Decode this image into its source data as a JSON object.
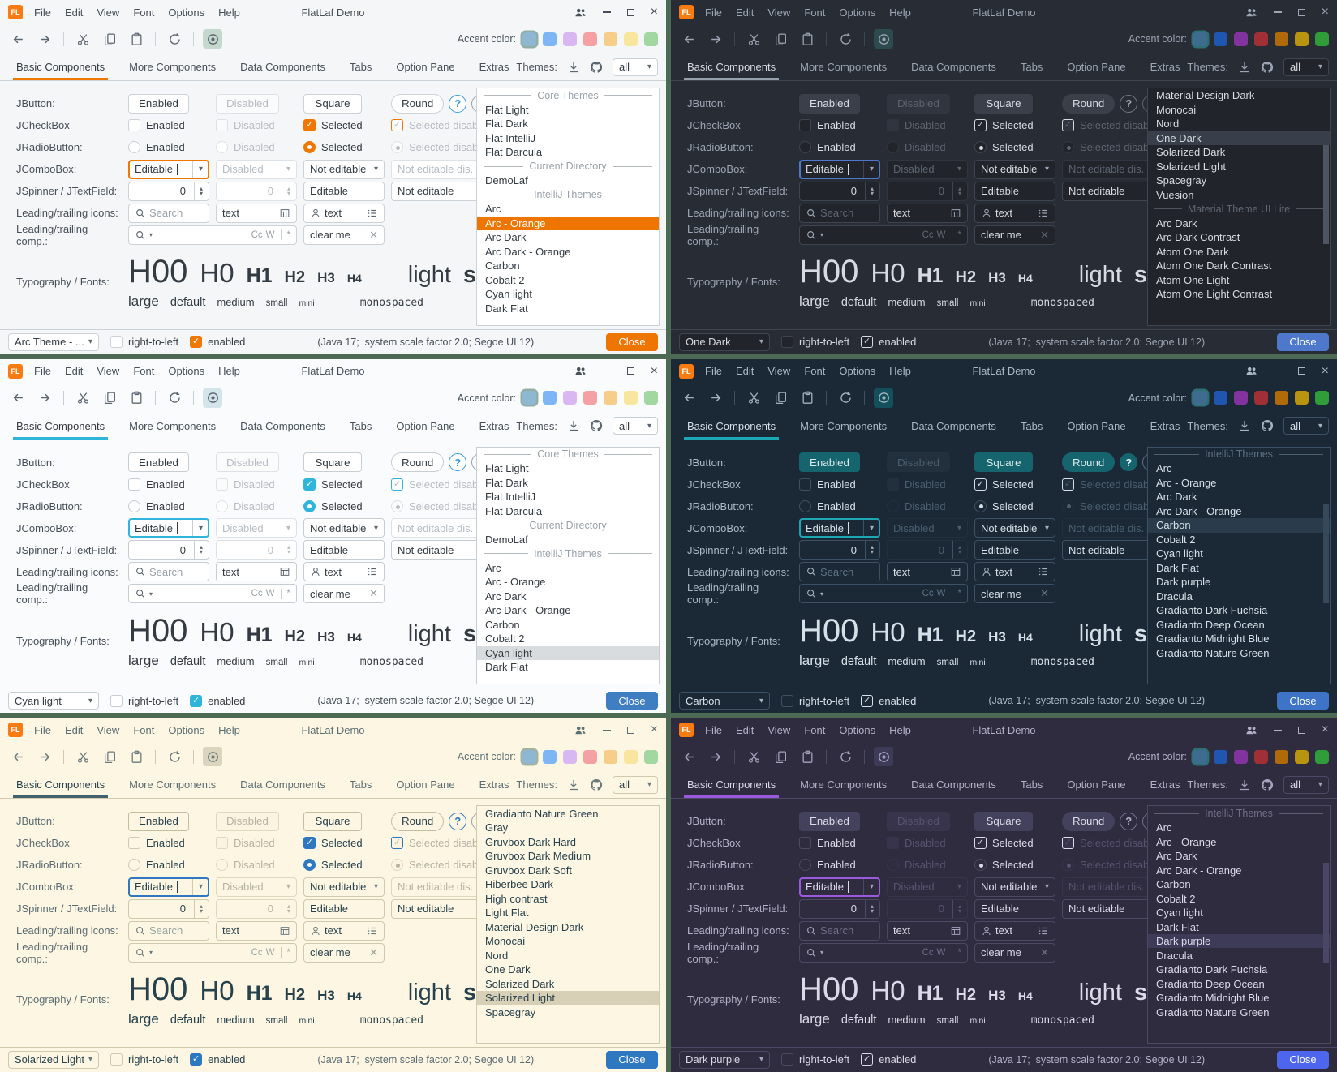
{
  "shared": {
    "titlebar": {
      "title": "FlatLaf Demo",
      "menu": [
        "File",
        "Edit",
        "View",
        "Font",
        "Options",
        "Help"
      ]
    },
    "toolbar": {
      "accent_label": "Accent color:"
    },
    "tabs": [
      "Basic Components",
      "More Components",
      "Data Components",
      "Tabs",
      "Option Pane",
      "Extras"
    ],
    "themes_panel": {
      "label": "Themes:",
      "filter_value": "all"
    },
    "accent_light": [
      "#8FB7D2",
      "#7EB6F5",
      "#D9B7F3",
      "#F5A0A2",
      "#F6CE8A",
      "#F8E59E",
      "#A3D7A1"
    ],
    "accent_dark": [
      "#3E6C8E",
      "#1E56B0",
      "#8233A0",
      "#A03036",
      "#B06A08",
      "#B89410",
      "#2F9E38"
    ],
    "icons": {
      "dropdown_arrow": "▾",
      "spinner_up": "▴",
      "spinner_down": "▾",
      "check": "✓",
      "close_x": "×",
      "clear_x": "✕",
      "caret": "|"
    },
    "rows": {
      "jbutton": {
        "label": "JButton:",
        "enabled": "Enabled",
        "disabled": "Disabled",
        "square": "Square",
        "round": "Round",
        "help": "?"
      },
      "jcheckbox": {
        "label": "JCheckBox",
        "enabled": "Enabled",
        "disabled": "Disabled",
        "selected": "Selected",
        "selected_disabled": "Selected disabled"
      },
      "jradio": {
        "label": "JRadioButton:",
        "enabled": "Enabled",
        "disabled": "Disabled",
        "selected": "Selected",
        "selected_disabled": "Selected disabled"
      },
      "jcombobox": {
        "label": "JComboBox:",
        "editable": "Editable",
        "disabled": "Disabled",
        "not_editable": "Not editable",
        "not_editable_disabled": "Not editable dis..."
      },
      "jspinner": {
        "label": "JSpinner / JTextField:",
        "value": "0",
        "editable": "Editable",
        "not_editable": "Not editable"
      },
      "icons_row": {
        "label": "Leading/trailing icons:",
        "search_placeholder": "Search",
        "text1": "text",
        "text2": "text"
      },
      "comp_row": {
        "label": "Leading/trailing comp.:",
        "match_case": "Cc",
        "words": "W",
        "regex": "*",
        "clear": "clear me"
      },
      "typography": {
        "label": "Typography / Fonts:",
        "samples": [
          "H00",
          "H0",
          "H1",
          "H2",
          "H3",
          "H4"
        ],
        "light": "light",
        "semibold": "semibold",
        "sizes": [
          "large",
          "default",
          "medium",
          "small",
          "mini"
        ],
        "monospaced": "monospaced"
      }
    },
    "status": {
      "rtl": "right-to-left",
      "enabled": "enabled",
      "info": "(Java 17;  system scale factor 2.0; Segoe UI 12)",
      "close": "Close"
    }
  },
  "panels": [
    {
      "theme": "Arc - Orange",
      "kind": "light",
      "accent_set": "accent_light",
      "scrollbar": false,
      "status_theme": "Arc Theme - ...",
      "colors": {
        "bg": "#F5F6F7",
        "field": "#FFFFFF",
        "fg": "#47505A",
        "strong": "#333B43",
        "muted": "#99A1A9",
        "border": "#CBD2D8",
        "btn": "#FFFFFF",
        "btnbd": "#CBD2D8",
        "btnfg": "#333B43",
        "btndis": "#FAFBFB",
        "disbd": "#DDE2E6",
        "disabled": "#B6BCC3",
        "accent": "#F07800",
        "tabline": "#F07800",
        "selbg": "#EE7500",
        "selfg": "#FFFFFF",
        "close": "#EE7500",
        "closefg": "#FFFFFF",
        "toggle": "#C5D8CE",
        "icon": "#5C6670",
        "checkbg": "#F07800",
        "checkfg": "#FFFFFF",
        "help1bg": "#FFFFFF",
        "help1fg": "#3B99E0",
        "help1bd": "#3B99E0",
        "thumb": "transparent",
        "ring": "#8FAFA3"
      },
      "themes_list": [
        {
          "label": "Core Themes",
          "header": true
        },
        {
          "label": "Flat Light"
        },
        {
          "label": "Flat Dark"
        },
        {
          "label": "Flat IntelliJ"
        },
        {
          "label": "Flat Darcula"
        },
        {
          "label": "Current Directory",
          "header": true
        },
        {
          "label": "DemoLaf"
        },
        {
          "label": "IntelliJ Themes",
          "header": true
        },
        {
          "label": "Arc"
        },
        {
          "label": "Arc - Orange",
          "selected": true
        },
        {
          "label": "Arc Dark"
        },
        {
          "label": "Arc Dark - Orange"
        },
        {
          "label": "Carbon"
        },
        {
          "label": "Cobalt 2"
        },
        {
          "label": "Cyan light"
        },
        {
          "label": "Dark Flat"
        }
      ]
    },
    {
      "theme": "One Dark",
      "kind": "dark",
      "accent_set": "accent_dark",
      "scrollbar": true,
      "status_theme": "One Dark",
      "colors": {
        "bg": "#282C34",
        "field": "#21252B",
        "fg": "#9DA5B4",
        "strong": "#D7DAE0",
        "muted": "#5F6672",
        "border": "#3E4450",
        "btn": "#3A3F4A",
        "btnbd": "#3A3F4A",
        "btnfg": "#D7DAE0",
        "btndis": "#31353F",
        "disbd": "#31353F",
        "disabled": "#5C636F",
        "accent": "#4D78CC",
        "tabline": "#97A0AE",
        "selbg": "#383E4A",
        "selfg": "#D7DAE0",
        "close": "#4D78CC",
        "closefg": "#FFFFFF",
        "toggle": "#2D4A4F",
        "icon": "#9DA5B4",
        "checkbg": "#21252B",
        "checkfg": "#C8CED8",
        "help1bg": "transparent",
        "help1fg": "#9DA5B4",
        "help1bd": "#6F7784",
        "thumb": "#4D5562",
        "ring": "#2E6E75"
      },
      "themes_list": [
        {
          "label": "Material Design Dark"
        },
        {
          "label": "Monocai"
        },
        {
          "label": "Nord"
        },
        {
          "label": "One Dark",
          "selected": true
        },
        {
          "label": "Solarized Dark"
        },
        {
          "label": "Solarized Light"
        },
        {
          "label": "Spacegray"
        },
        {
          "label": "Vuesion"
        },
        {
          "label": "Material Theme UI Lite",
          "header": true
        },
        {
          "label": "Arc Dark"
        },
        {
          "label": "Arc Dark Contrast"
        },
        {
          "label": "Atom One Dark"
        },
        {
          "label": "Atom One Dark Contrast"
        },
        {
          "label": "Atom One Light"
        },
        {
          "label": "Atom One Light Contrast"
        }
      ]
    },
    {
      "theme": "Cyan light",
      "kind": "light",
      "accent_set": "accent_light",
      "scrollbar": false,
      "status_theme": "Cyan light",
      "colors": {
        "bg": "#FAFBFC",
        "field": "#FFFFFF",
        "fg": "#46505A",
        "strong": "#333A41",
        "muted": "#9AA2AA",
        "border": "#C6CDD3",
        "btn": "#FFFFFF",
        "btnbd": "#C6CDD3",
        "btnfg": "#333A41",
        "btndis": "#FAFBFB",
        "disbd": "#DDE2E6",
        "disabled": "#B7BDC4",
        "accent": "#2FB4DA",
        "tabline": "#2FB4DA",
        "selbg": "#D8DCDF",
        "selfg": "#333A41",
        "close": "#3F7EC0",
        "closefg": "#FFFFFF",
        "toggle": "#D3E5EA",
        "icon": "#5C6670",
        "checkbg": "#2FB4DA",
        "checkfg": "#FFFFFF",
        "help1bg": "#FFFFFF",
        "help1fg": "#3B99E0",
        "help1bd": "#3B99E0",
        "thumb": "transparent",
        "ring": "#8FAFA3"
      },
      "themes_list": [
        {
          "label": "Core Themes",
          "header": true
        },
        {
          "label": "Flat Light"
        },
        {
          "label": "Flat Dark"
        },
        {
          "label": "Flat IntelliJ"
        },
        {
          "label": "Flat Darcula"
        },
        {
          "label": "Current Directory",
          "header": true
        },
        {
          "label": "DemoLaf"
        },
        {
          "label": "IntelliJ Themes",
          "header": true
        },
        {
          "label": "Arc"
        },
        {
          "label": "Arc - Orange"
        },
        {
          "label": "Arc Dark"
        },
        {
          "label": "Arc Dark - Orange"
        },
        {
          "label": "Carbon"
        },
        {
          "label": "Cobalt 2"
        },
        {
          "label": "Cyan light",
          "selected": true
        },
        {
          "label": "Dark Flat"
        }
      ]
    },
    {
      "theme": "Carbon",
      "kind": "dark",
      "accent_set": "accent_dark",
      "scrollbar": true,
      "status_theme": "Carbon",
      "colors": {
        "bg": "#1B2937",
        "field": "#1B2937",
        "fg": "#AAB8C4",
        "strong": "#D5E0E8",
        "muted": "#5D7283",
        "border": "#3C5163",
        "btn": "#15646E",
        "btnbd": "#15646E",
        "btnfg": "#D9EAEA",
        "btndis": "#22303D",
        "disbd": "#22303D",
        "disabled": "#4A5E6E",
        "accent": "#1BA7B4",
        "tabline": "#1BA7B4",
        "selbg": "#2A3B4B",
        "selfg": "#D5E0E8",
        "close": "#3E74C8",
        "closefg": "#FFFFFF",
        "toggle": "#14505C",
        "icon": "#A2B2BF",
        "checkbg": "#1B2937",
        "checkfg": "#D5E0E8",
        "help1bg": "#15646E",
        "help1fg": "#E6F2F2",
        "help1bd": "#15646E",
        "thumb": "#35495B",
        "ring": "#2E6E75"
      },
      "themes_list": [
        {
          "label": "IntelliJ Themes",
          "header": true
        },
        {
          "label": "Arc"
        },
        {
          "label": "Arc - Orange"
        },
        {
          "label": "Arc Dark"
        },
        {
          "label": "Arc Dark - Orange"
        },
        {
          "label": "Carbon",
          "selected": true
        },
        {
          "label": "Cobalt 2"
        },
        {
          "label": "Cyan light"
        },
        {
          "label": "Dark Flat"
        },
        {
          "label": "Dark purple"
        },
        {
          "label": "Dracula"
        },
        {
          "label": "Gradianto Dark Fuchsia"
        },
        {
          "label": "Gradianto Deep Ocean"
        },
        {
          "label": "Gradianto Midnight Blue"
        },
        {
          "label": "Gradianto Nature Green"
        }
      ]
    },
    {
      "theme": "Solarized Light",
      "kind": "light",
      "accent_set": "accent_light",
      "scrollbar": false,
      "status_theme": "Solarized Light",
      "colors": {
        "bg": "#FDF6E3",
        "field": "#FDF6E3",
        "fg": "#5C6E74",
        "strong": "#27424C",
        "muted": "#98A5A3",
        "border": "#D0C9AE",
        "btn": "#FDF6E3",
        "btnbd": "#C4BD9F",
        "btnfg": "#27424C",
        "btndis": "#FBF4E1",
        "disbd": "#DFD8BE",
        "disabled": "#B5B3A0",
        "accent": "#2E78C2",
        "tabline": "#42626E",
        "selbg": "#D8D0B6",
        "selfg": "#27424C",
        "close": "#2E78C2",
        "closefg": "#FFFFFF",
        "toggle": "#DCD5BD",
        "icon": "#6A7A7E",
        "checkbg": "#2E78C2",
        "checkfg": "#FFFFFF",
        "help1bg": "#FDF6E3",
        "help1fg": "#2E78C2",
        "help1bd": "#2E78C2",
        "thumb": "transparent",
        "ring": "#A2B39F"
      },
      "themes_list": [
        {
          "label": "Gradianto Nature Green"
        },
        {
          "label": "Gray"
        },
        {
          "label": "Gruvbox Dark Hard"
        },
        {
          "label": "Gruvbox Dark Medium"
        },
        {
          "label": "Gruvbox Dark Soft"
        },
        {
          "label": "Hiberbee Dark"
        },
        {
          "label": "High contrast"
        },
        {
          "label": "Light Flat"
        },
        {
          "label": "Material Design Dark"
        },
        {
          "label": "Monocai"
        },
        {
          "label": "Nord"
        },
        {
          "label": "One Dark"
        },
        {
          "label": "Solarized Dark"
        },
        {
          "label": "Solarized Light",
          "selected": true
        },
        {
          "label": "Spacegray"
        }
      ]
    },
    {
      "theme": "Dark purple",
      "kind": "dark",
      "accent_set": "accent_dark",
      "scrollbar": true,
      "status_theme": "Dark purple",
      "colors": {
        "bg": "#2E2C3E",
        "field": "#2E2C3E",
        "fg": "#B4B0C8",
        "strong": "#DCD9EA",
        "muted": "#716D8A",
        "border": "#4C4964",
        "btn": "#44415C",
        "btnbd": "#44415C",
        "btnfg": "#DCD9EA",
        "btndis": "#37344C",
        "disbd": "#37344C",
        "disabled": "#575371",
        "accent": "#9B59E0",
        "tabline": "#9B59E0",
        "selbg": "#3E3B58",
        "selfg": "#DCD9EA",
        "close": "#4E66EE",
        "closefg": "#FFFFFF",
        "toggle": "#3E3B58",
        "icon": "#A7A2C0",
        "checkbg": "#2E2C3E",
        "checkfg": "#DCD9EA",
        "help1bg": "transparent",
        "help1fg": "#B4B0C8",
        "help1bd": "#7A7598",
        "thumb": "#4A4766",
        "ring": "#2E6E75"
      },
      "themes_list": [
        {
          "label": "IntelliJ Themes",
          "header": true
        },
        {
          "label": "Arc"
        },
        {
          "label": "Arc - Orange"
        },
        {
          "label": "Arc Dark"
        },
        {
          "label": "Arc Dark - Orange"
        },
        {
          "label": "Carbon"
        },
        {
          "label": "Cobalt 2"
        },
        {
          "label": "Cyan light"
        },
        {
          "label": "Dark Flat"
        },
        {
          "label": "Dark purple",
          "selected": true
        },
        {
          "label": "Dracula"
        },
        {
          "label": "Gradianto Dark Fuchsia"
        },
        {
          "label": "Gradianto Deep Ocean"
        },
        {
          "label": "Gradianto Midnight Blue"
        },
        {
          "label": "Gradianto Nature Green"
        }
      ]
    }
  ]
}
